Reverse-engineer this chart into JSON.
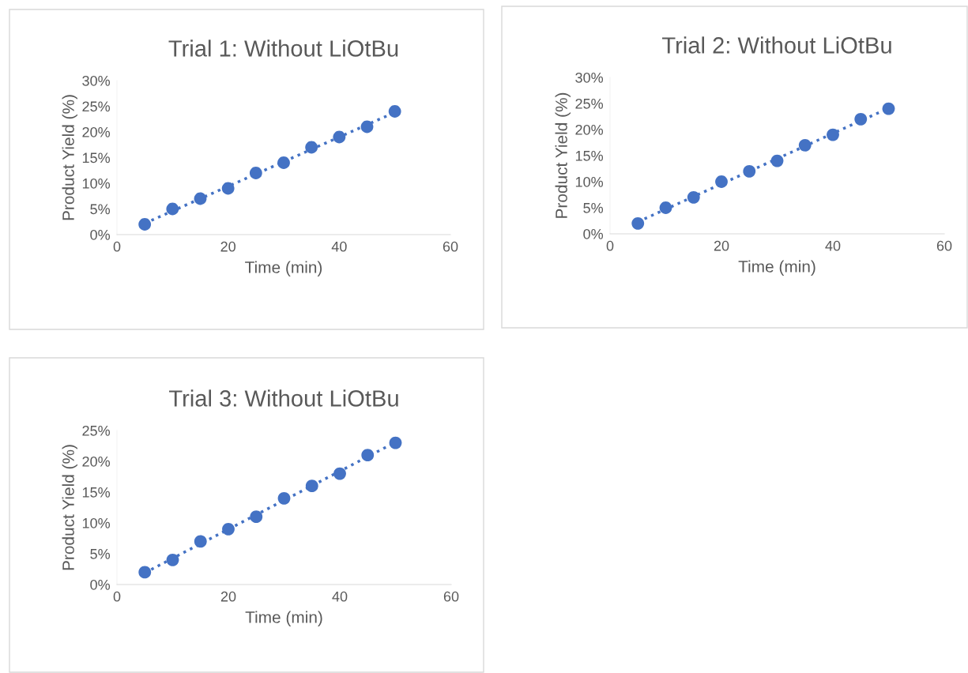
{
  "chart_data": [
    {
      "type": "scatter",
      "title": "Trial 1: Without LiOtBu",
      "xlabel": "Time (min)",
      "ylabel": "Product Yield (%)",
      "grid": false,
      "legend": false,
      "xlim": [
        0,
        60
      ],
      "xticks": [
        0,
        20,
        40,
        60
      ],
      "ylim": [
        0,
        30
      ],
      "yticks": [
        {
          "value": 0,
          "label": "0%"
        },
        {
          "value": 5,
          "label": "5%"
        },
        {
          "value": 10,
          "label": "10%"
        },
        {
          "value": 15,
          "label": "15%"
        },
        {
          "value": 20,
          "label": "20%"
        },
        {
          "value": 25,
          "label": "25%"
        },
        {
          "value": 30,
          "label": "30%"
        }
      ],
      "series": [
        {
          "color": "#4472c4",
          "marker": "circle",
          "x": [
            5,
            10,
            15,
            20,
            25,
            30,
            35,
            40,
            45,
            50
          ],
          "values": [
            2,
            5,
            7,
            9,
            12,
            14,
            17,
            19,
            21,
            24
          ]
        },
        {
          "type": "line",
          "color": "#4472c4",
          "line_style": "dotted",
          "marker": "none",
          "x": [
            5,
            50
          ],
          "values": [
            2.2,
            23.8
          ]
        }
      ]
    },
    {
      "type": "scatter",
      "title": "Trial 2: Without LiOtBu",
      "xlabel": "Time (min)",
      "ylabel": "Product Yield (%)",
      "grid": false,
      "legend": false,
      "xlim": [
        0,
        60
      ],
      "xticks": [
        0,
        20,
        40,
        60
      ],
      "ylim": [
        0,
        30
      ],
      "yticks": [
        {
          "value": 0,
          "label": "0%"
        },
        {
          "value": 5,
          "label": "5%"
        },
        {
          "value": 10,
          "label": "10%"
        },
        {
          "value": 15,
          "label": "15%"
        },
        {
          "value": 20,
          "label": "20%"
        },
        {
          "value": 25,
          "label": "25%"
        },
        {
          "value": 30,
          "label": "30%"
        }
      ],
      "series": [
        {
          "color": "#4472c4",
          "marker": "circle",
          "x": [
            5,
            10,
            15,
            20,
            25,
            30,
            35,
            40,
            45,
            50
          ],
          "values": [
            2,
            5,
            7,
            10,
            12,
            14,
            17,
            19,
            22,
            24
          ]
        },
        {
          "type": "line",
          "color": "#4472c4",
          "line_style": "dotted",
          "marker": "none",
          "x": [
            5,
            50
          ],
          "values": [
            2.3,
            24.1
          ]
        }
      ]
    },
    {
      "type": "scatter",
      "title": "Trial 3: Without LiOtBu",
      "xlabel": "Time (min)",
      "ylabel": "Product Yield (%)",
      "grid": false,
      "legend": false,
      "xlim": [
        0,
        60
      ],
      "xticks": [
        0,
        20,
        40,
        60
      ],
      "ylim": [
        0,
        25
      ],
      "yticks": [
        {
          "value": 0,
          "label": "0%"
        },
        {
          "value": 5,
          "label": "5%"
        },
        {
          "value": 10,
          "label": "10%"
        },
        {
          "value": 15,
          "label": "15%"
        },
        {
          "value": 20,
          "label": "20%"
        },
        {
          "value": 25,
          "label": "25%"
        }
      ],
      "series": [
        {
          "color": "#4472c4",
          "marker": "circle",
          "x": [
            5,
            10,
            15,
            20,
            25,
            30,
            35,
            40,
            45,
            50
          ],
          "values": [
            2,
            4,
            7,
            9,
            11,
            14,
            16,
            18,
            21,
            23
          ]
        },
        {
          "type": "line",
          "color": "#4472c4",
          "line_style": "dotted",
          "marker": "none",
          "x": [
            5,
            50
          ],
          "values": [
            1.9,
            23.1
          ]
        }
      ]
    }
  ]
}
